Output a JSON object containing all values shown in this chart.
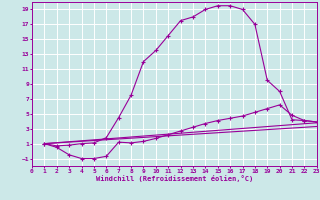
{
  "bg_color": "#cce8e8",
  "grid_color": "#ffffff",
  "line_color": "#990099",
  "xlabel": "Windchill (Refroidissement éolien,°C)",
  "xlim": [
    0,
    23
  ],
  "ylim": [
    -2,
    20
  ],
  "xticks": [
    0,
    1,
    2,
    3,
    4,
    5,
    6,
    7,
    8,
    9,
    10,
    11,
    12,
    13,
    14,
    15,
    16,
    17,
    18,
    19,
    20,
    21,
    22,
    23
  ],
  "yticks": [
    -1,
    1,
    3,
    5,
    7,
    9,
    11,
    13,
    15,
    17,
    19
  ],
  "curve1_x": [
    1,
    2,
    3,
    4,
    5,
    6,
    7,
    8,
    9,
    10,
    11,
    12,
    13,
    14,
    15,
    16,
    17,
    18,
    19,
    20,
    21,
    22,
    23
  ],
  "curve1_y": [
    1.0,
    0.7,
    0.8,
    1.0,
    1.1,
    1.8,
    4.5,
    7.5,
    12.0,
    13.5,
    15.5,
    17.5,
    18.0,
    19.0,
    19.5,
    19.5,
    19.0,
    17.0,
    9.5,
    8.0,
    4.2,
    4.1,
    3.9
  ],
  "curve2_x": [
    1,
    2,
    3,
    4,
    5,
    6,
    7,
    8,
    9,
    10,
    11,
    12,
    13,
    14,
    15,
    16,
    17,
    18,
    19,
    20,
    21,
    22,
    23
  ],
  "curve2_y": [
    1.0,
    0.5,
    -0.5,
    -1.0,
    -1.0,
    -0.7,
    1.2,
    1.1,
    1.3,
    1.7,
    2.2,
    2.7,
    3.2,
    3.7,
    4.1,
    4.4,
    4.7,
    5.2,
    5.7,
    6.2,
    4.8,
    4.1,
    3.9
  ],
  "line3_x": [
    1,
    23
  ],
  "line3_y": [
    1.0,
    3.8
  ],
  "line4_x": [
    1,
    23
  ],
  "line4_y": [
    1.0,
    3.3
  ]
}
